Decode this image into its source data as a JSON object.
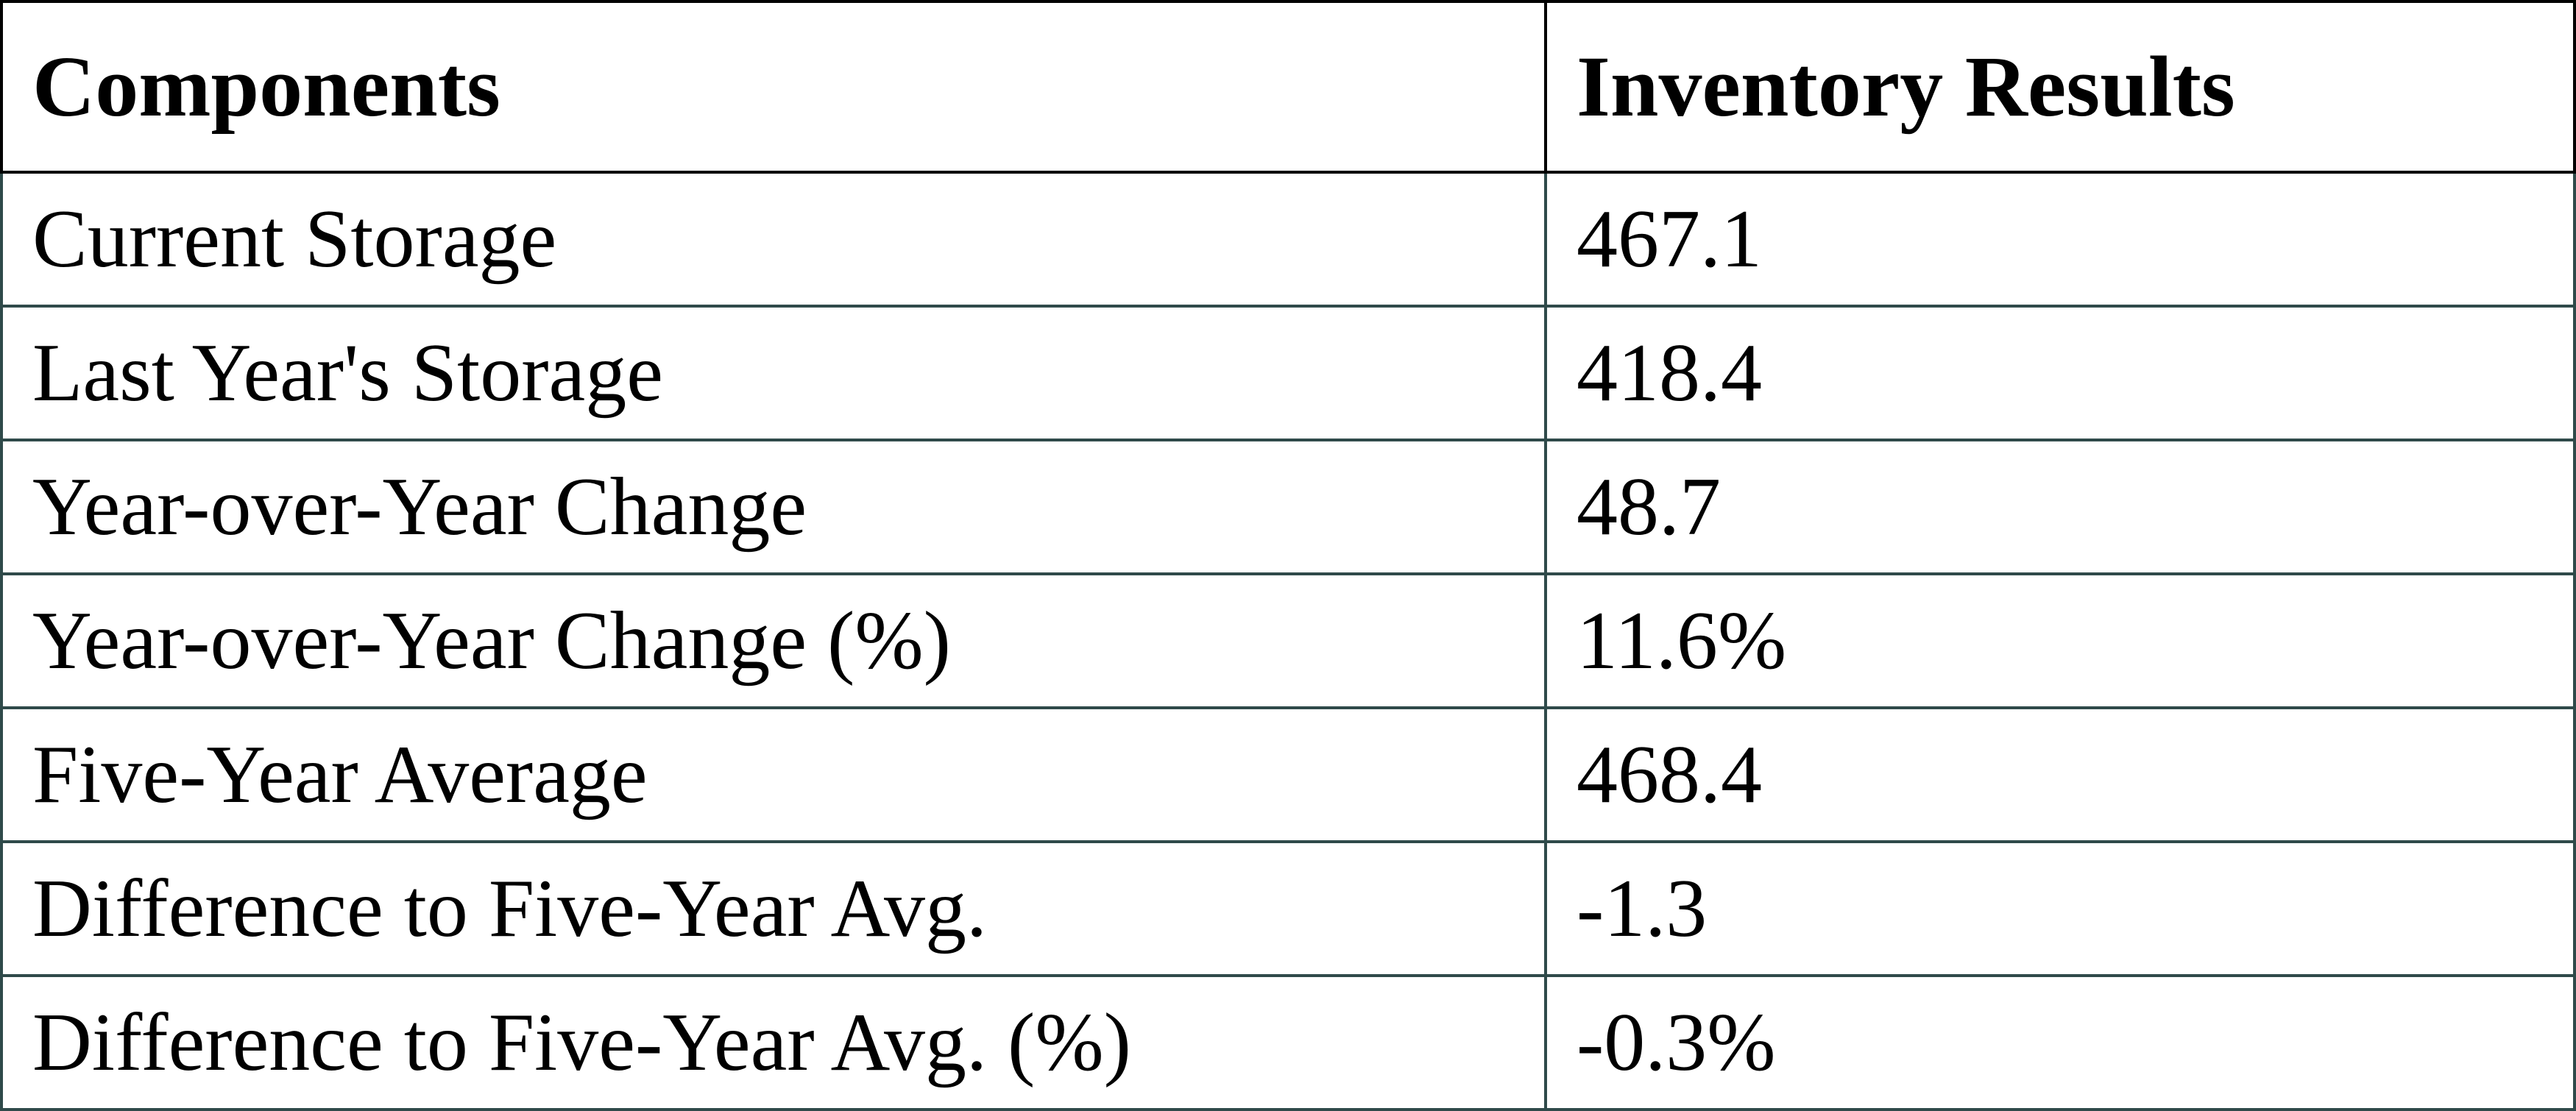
{
  "table": {
    "header": [
      "Components",
      "Inventory Results"
    ],
    "rows": [
      [
        "Current Storage",
        "467.1"
      ],
      [
        "Last Year's Storage",
        "418.4"
      ],
      [
        "Year-over-Year Change",
        "48.7"
      ],
      [
        "Year-over-Year Change (%)",
        "11.6%"
      ],
      [
        "Five-Year Average",
        "468.4"
      ],
      [
        "Difference to Five-Year Avg.",
        "-1.3"
      ],
      [
        "Difference to Five-Year Avg. (%)",
        "-0.3%"
      ]
    ]
  }
}
